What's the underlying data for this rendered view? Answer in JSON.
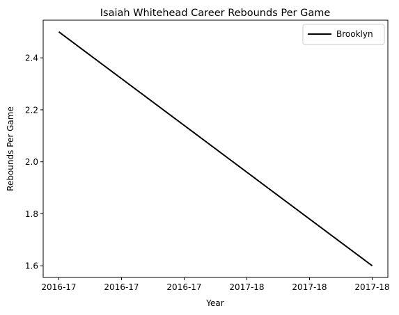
{
  "chart_data": {
    "type": "line",
    "title": "Isaiah Whitehead Career Rebounds Per Game",
    "xlabel": "Year",
    "ylabel": "Rebounds Per Game",
    "x": [
      0,
      1
    ],
    "xticks": [
      0,
      0.2,
      0.4,
      0.6,
      0.8,
      1.0
    ],
    "xtick_labels": [
      "2016-17",
      "2016-17",
      "2016-17",
      "2017-18",
      "2017-18",
      "2017-18"
    ],
    "series": [
      {
        "name": "Brooklyn",
        "values": [
          2.5,
          1.6
        ],
        "color": "#000000"
      }
    ],
    "yticks": [
      1.6,
      1.8,
      2.0,
      2.2,
      2.4
    ],
    "ytick_labels": [
      "1.6",
      "1.8",
      "2.0",
      "2.2",
      "2.4"
    ],
    "xlim": [
      -0.05,
      1.05
    ],
    "ylim": [
      1.555,
      2.545
    ],
    "grid": false,
    "legend": "top-right"
  }
}
